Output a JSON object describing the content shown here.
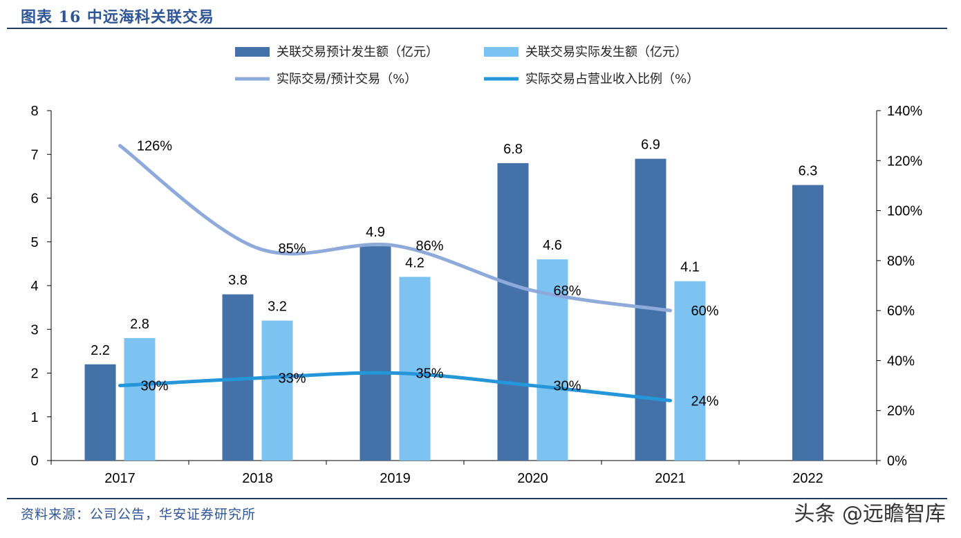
{
  "header": {
    "title": "图表 16 中远海科关联交易"
  },
  "footer": {
    "source": "资料来源：公司公告，华安证券研究所",
    "watermark": "头条 @远瞻智库"
  },
  "colors": {
    "expected_bar": "#4472a8",
    "actual_bar": "#7cc3f2",
    "ratio_line": "#8eaadb",
    "revenue_line": "#2596d9",
    "rule": "#1f3864",
    "title": "#2f5597"
  },
  "chart_data": {
    "type": "bar",
    "categories": [
      "2017",
      "2018",
      "2019",
      "2020",
      "2021",
      "2022"
    ],
    "series": [
      {
        "name": "关联交易预计发生额（亿元）",
        "kind": "bar",
        "axis": "left",
        "values": [
          2.2,
          3.8,
          4.9,
          6.8,
          6.9,
          6.3
        ],
        "labels": [
          "2.2",
          "3.8",
          "4.9",
          "6.8",
          "6.9",
          "6.3"
        ]
      },
      {
        "name": "关联交易实际发生额（亿元）",
        "kind": "bar",
        "axis": "left",
        "values": [
          2.8,
          3.2,
          4.2,
          4.6,
          4.1,
          null
        ],
        "labels": [
          "2.8",
          "3.2",
          "4.2",
          "4.6",
          "4.1",
          ""
        ]
      },
      {
        "name": "实际交易/预计交易（%）",
        "kind": "line",
        "axis": "right",
        "values": [
          126,
          85,
          86,
          68,
          60,
          null
        ],
        "labels": [
          "126%",
          "85%",
          "86%",
          "68%",
          "60%",
          ""
        ]
      },
      {
        "name": "实际交易占营业收入比例（%）",
        "kind": "line",
        "axis": "right",
        "values": [
          30,
          33,
          35,
          30,
          24,
          null
        ],
        "labels": [
          "30%",
          "33%",
          "35%",
          "30%",
          "24%",
          ""
        ]
      }
    ],
    "left_axis": {
      "ylim": [
        0,
        8
      ],
      "ticks": [
        "0",
        "1",
        "2",
        "3",
        "4",
        "5",
        "6",
        "7",
        "8"
      ]
    },
    "right_axis": {
      "ylim": [
        0,
        140
      ],
      "ticks": [
        "0%",
        "20%",
        "40%",
        "60%",
        "80%",
        "100%",
        "120%",
        "140%"
      ]
    },
    "legend": {
      "placement": "top"
    },
    "grid": false
  }
}
